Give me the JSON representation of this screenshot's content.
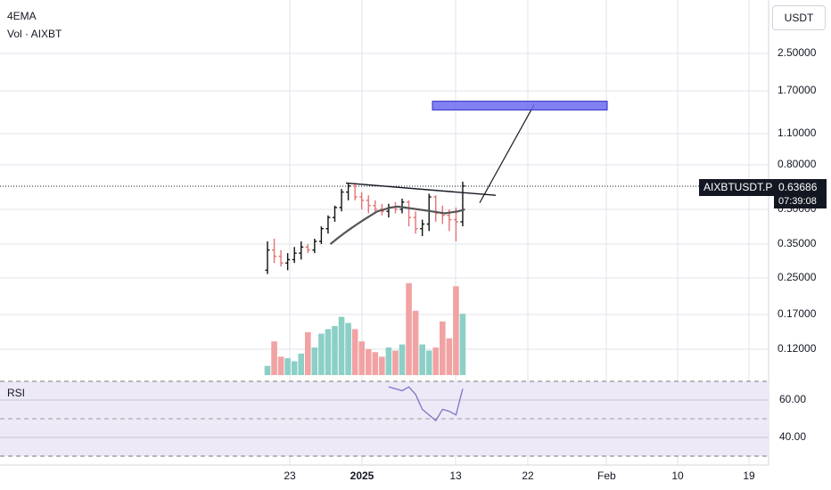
{
  "legend": {
    "ema": "4EMA",
    "volume": "Vol · AIXBT"
  },
  "unit_button": "USDT",
  "symbol_tag": "AIXBTUSDT.P",
  "last_price": "0.63686",
  "countdown": "07:39:08",
  "rsi_label": "RSI",
  "colors": {
    "up": "#111111",
    "down": "#e57373",
    "vol_up": "#8ccfc6",
    "vol_down": "#f1a3a3",
    "ema": "#555555",
    "rsi": "#7e74c4",
    "target_box": "#6b6bf0"
  },
  "chart_data": {
    "type": "ohlc",
    "price_axis_ticks": [
      "2.50000",
      "1.70000",
      "1.10000",
      "0.80000",
      "0.50000",
      "0.35000",
      "0.25000",
      "0.17000",
      "0.12000"
    ],
    "rsi_axis_ticks": [
      "60.00",
      "40.00"
    ],
    "x_ticks": [
      "23",
      "2025",
      "13",
      "22",
      "Feb",
      "10",
      "19"
    ],
    "candles": [
      {
        "o": 0.27,
        "h": 0.36,
        "l": 0.26,
        "c": 0.33
      },
      {
        "o": 0.33,
        "h": 0.37,
        "l": 0.29,
        "c": 0.31
      },
      {
        "o": 0.31,
        "h": 0.33,
        "l": 0.28,
        "c": 0.29
      },
      {
        "o": 0.29,
        "h": 0.32,
        "l": 0.27,
        "c": 0.3
      },
      {
        "o": 0.3,
        "h": 0.34,
        "l": 0.29,
        "c": 0.32
      },
      {
        "o": 0.32,
        "h": 0.36,
        "l": 0.3,
        "c": 0.34
      },
      {
        "o": 0.34,
        "h": 0.35,
        "l": 0.32,
        "c": 0.33
      },
      {
        "o": 0.33,
        "h": 0.37,
        "l": 0.32,
        "c": 0.36
      },
      {
        "o": 0.36,
        "h": 0.42,
        "l": 0.35,
        "c": 0.41
      },
      {
        "o": 0.41,
        "h": 0.47,
        "l": 0.39,
        "c": 0.46
      },
      {
        "o": 0.46,
        "h": 0.52,
        "l": 0.44,
        "c": 0.51
      },
      {
        "o": 0.51,
        "h": 0.62,
        "l": 0.49,
        "c": 0.6
      },
      {
        "o": 0.6,
        "h": 0.66,
        "l": 0.55,
        "c": 0.64
      },
      {
        "o": 0.64,
        "h": 0.66,
        "l": 0.55,
        "c": 0.57
      },
      {
        "o": 0.57,
        "h": 0.6,
        "l": 0.5,
        "c": 0.55
      },
      {
        "o": 0.55,
        "h": 0.58,
        "l": 0.48,
        "c": 0.52
      },
      {
        "o": 0.52,
        "h": 0.55,
        "l": 0.48,
        "c": 0.5
      },
      {
        "o": 0.5,
        "h": 0.53,
        "l": 0.47,
        "c": 0.49
      },
      {
        "o": 0.49,
        "h": 0.53,
        "l": 0.46,
        "c": 0.51
      },
      {
        "o": 0.51,
        "h": 0.54,
        "l": 0.48,
        "c": 0.5
      },
      {
        "o": 0.5,
        "h": 0.56,
        "l": 0.48,
        "c": 0.54
      },
      {
        "o": 0.54,
        "h": 0.55,
        "l": 0.42,
        "c": 0.46
      },
      {
        "o": 0.46,
        "h": 0.49,
        "l": 0.39,
        "c": 0.41
      },
      {
        "o": 0.41,
        "h": 0.45,
        "l": 0.38,
        "c": 0.43
      },
      {
        "o": 0.43,
        "h": 0.59,
        "l": 0.4,
        "c": 0.57
      },
      {
        "o": 0.57,
        "h": 0.58,
        "l": 0.44,
        "c": 0.48
      },
      {
        "o": 0.48,
        "h": 0.52,
        "l": 0.43,
        "c": 0.47
      },
      {
        "o": 0.47,
        "h": 0.5,
        "l": 0.4,
        "c": 0.45
      },
      {
        "o": 0.45,
        "h": 0.51,
        "l": 0.36,
        "c": 0.44
      },
      {
        "o": 0.44,
        "h": 0.67,
        "l": 0.42,
        "c": 0.64
      }
    ],
    "ema": [
      0.35,
      0.37,
      0.39,
      0.41,
      0.43,
      0.45,
      0.47,
      0.49,
      0.5,
      0.51,
      0.515,
      0.51,
      0.505,
      0.5,
      0.495,
      0.49,
      0.485,
      0.48,
      0.485,
      0.49,
      0.5
    ],
    "volume": [
      6,
      22,
      12,
      11,
      9,
      14,
      28,
      18,
      27,
      30,
      32,
      38,
      34,
      30,
      22,
      17,
      15,
      12,
      18,
      16,
      20,
      60,
      42,
      20,
      16,
      18,
      35,
      24,
      58,
      40
    ],
    "rsi": [
      67,
      66,
      65,
      67,
      63,
      55,
      52,
      49,
      55,
      54,
      52,
      66
    ],
    "trendline": {
      "start": 0.66,
      "end": 0.58
    },
    "projection": {
      "from": 0.6,
      "to": 1.45
    },
    "target_zone": {
      "low": 1.4,
      "high": 1.53
    }
  }
}
